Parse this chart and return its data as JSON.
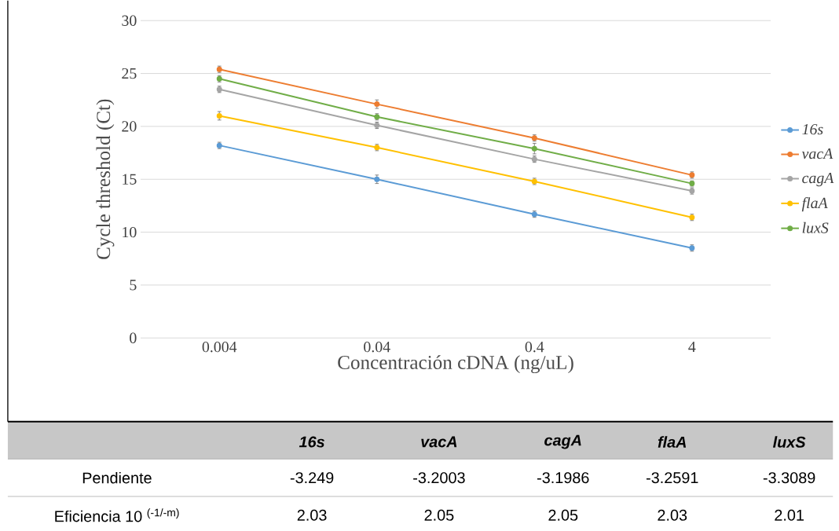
{
  "chart_data": [
    {
      "type": "line",
      "xlabel": "Concentración cDNA (ng/uL)",
      "ylabel": "Cycle threshold (Ct)",
      "categories": [
        "0.004",
        "0.04",
        "0.4",
        "4"
      ],
      "series": [
        {
          "name": "16s",
          "color": "#5b9bd5",
          "values": [
            18.2,
            15.0,
            11.7,
            8.5
          ],
          "errors": [
            0.3,
            0.4,
            0.3,
            0.3
          ]
        },
        {
          "name": "vacA",
          "color": "#ed7d31",
          "values": [
            25.4,
            22.1,
            18.9,
            15.4
          ],
          "errors": [
            0.3,
            0.4,
            0.3,
            0.3
          ]
        },
        {
          "name": "cagA",
          "color": "#a5a5a5",
          "values": [
            23.5,
            20.1,
            16.9,
            13.9
          ],
          "errors": [
            0.3,
            0.3,
            0.3,
            0.3
          ]
        },
        {
          "name": "flaA",
          "color": "#ffc000",
          "values": [
            21.0,
            18.0,
            14.8,
            11.4
          ],
          "errors": [
            0.4,
            0.3,
            0.3,
            0.3
          ]
        },
        {
          "name": "luxS",
          "color": "#70ad47",
          "values": [
            24.5,
            20.9,
            17.9,
            14.6
          ],
          "errors": [
            0.3,
            0.3,
            0.5,
            0.25
          ]
        }
      ],
      "ylim": [
        0,
        30
      ],
      "yticks": [
        0,
        5,
        10,
        15,
        20,
        25,
        30
      ],
      "grid": "y",
      "legend": "right",
      "marker": "circle"
    },
    {
      "type": "other",
      "categories": [
        "16s",
        "vacA",
        "cagA",
        "flaA",
        "luxS"
      ],
      "series": [
        {
          "name": "Pendiente",
          "values": [
            -3.249,
            -3.2003,
            -3.1986,
            -3.2591,
            -3.3089
          ]
        },
        {
          "name": "Eficiencia 10 $^{(-1/-m)}$",
          "values": [
            2.03,
            2.05,
            2.05,
            2.03,
            2.01
          ]
        }
      ],
      "data_labels": true
    }
  ]
}
